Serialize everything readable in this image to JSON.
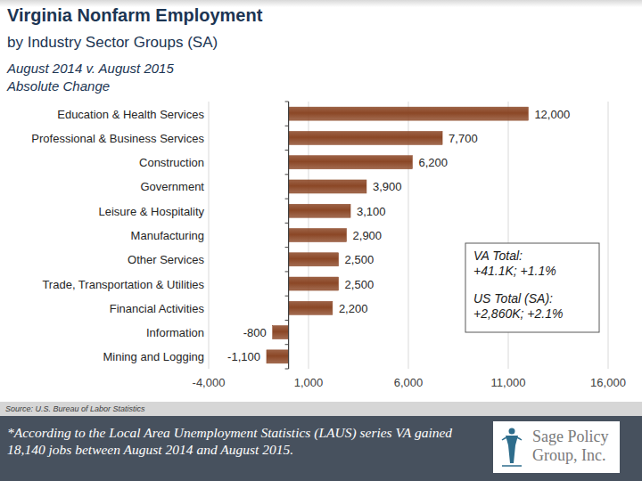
{
  "chart_data": {
    "type": "bar",
    "orientation": "horizontal",
    "title": "Virginia Nonfarm Employment",
    "subtitle": "by Industry Sector Groups (SA)",
    "period": "August 2014 v. August 2015",
    "measure": "Absolute Change",
    "categories": [
      "Education & Health Services",
      "Professional & Business Services",
      "Construction",
      "Government",
      "Leisure & Hospitality",
      "Manufacturing",
      "Other Services",
      "Trade, Transportation & Utilities",
      "Financial Activities",
      "Information",
      "Mining and Logging"
    ],
    "values": [
      12000,
      7700,
      6200,
      3900,
      3100,
      2900,
      2500,
      2500,
      2200,
      -800,
      -1100
    ],
    "value_labels": [
      "12,000",
      "7,700",
      "6,200",
      "3,900",
      "3,100",
      "2,900",
      "2,500",
      "2,500",
      "2,200",
      "-800",
      "-1,100"
    ],
    "color": "#8b4726",
    "data_labels": true,
    "grid": true,
    "xlim": [
      -4000,
      16000
    ],
    "xticks": [
      {
        "value": -4000,
        "label": "-4,000"
      },
      {
        "value": 1000,
        "label": "1,000"
      },
      {
        "value": 6000,
        "label": "6,000"
      },
      {
        "value": 11000,
        "label": "11,000"
      },
      {
        "value": 16000,
        "label": "16,000"
      }
    ],
    "annotations": [
      "VA Total:",
      "+41.1K; +1.1%",
      "US Total (SA):",
      "+2,860K; +2.1%"
    ],
    "source": "Source: U.S. Bureau of Labor Statistics",
    "footnote": "*According to the Local Area Unemployment Statistics (LAUS) series VA gained 18,140 jobs between August 2014 and August 2015.",
    "logo": "Sage Policy Group, Inc."
  }
}
